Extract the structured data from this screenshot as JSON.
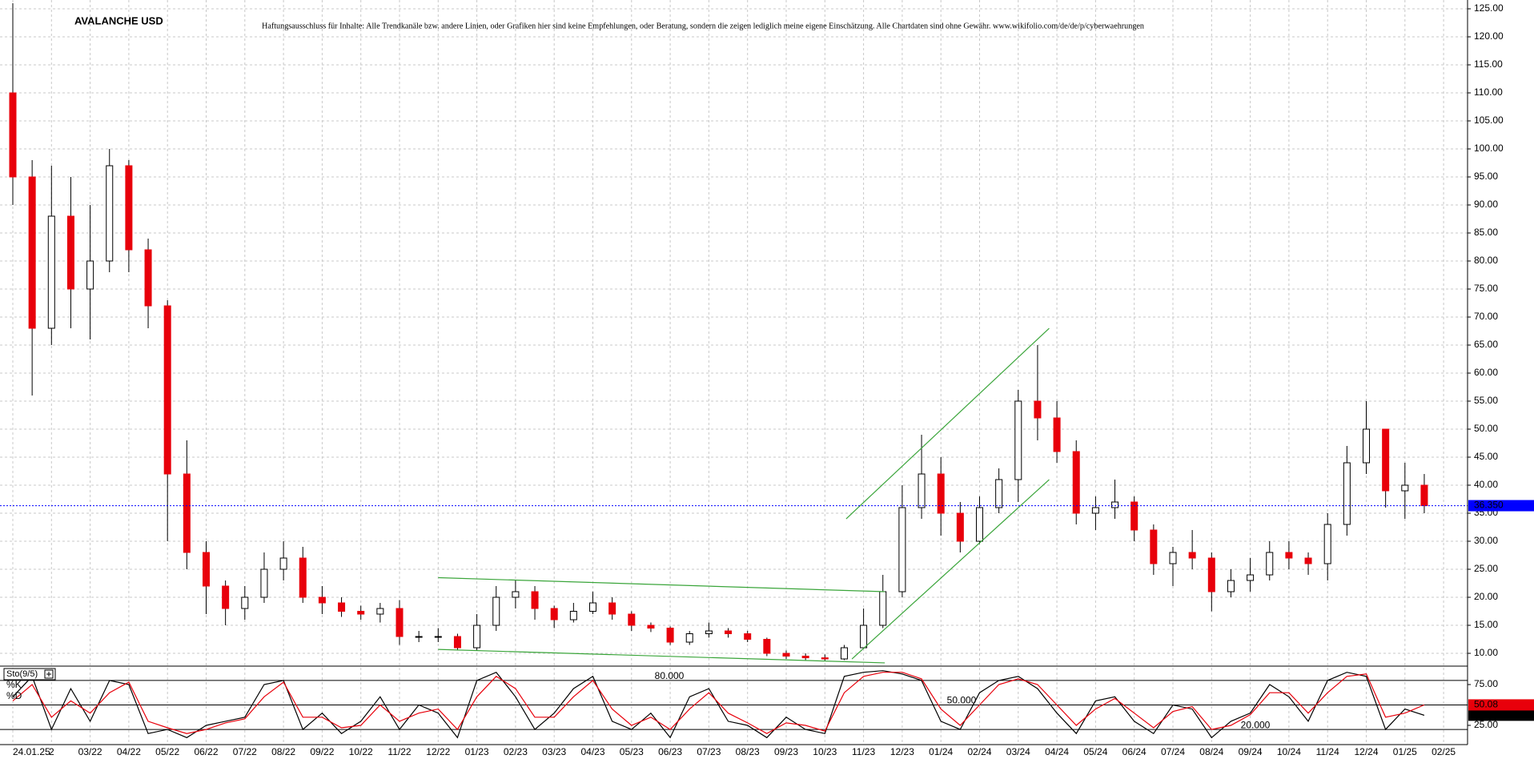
{
  "chart_data": [
    {
      "type": "candlestick",
      "title": "AVALANCHE USD",
      "disclaimer": "Haftungsausschluss für Inhalte: Alle Trendkanäle bzw. andere Linien, oder Grafiken hier sind keine Empfehlungen, oder Beratung, sondern die zeigen lediglich meine eigene Einschätzung. Alle Chartdaten sind ohne Gewähr.  www.wikifolio.com/de/de/p/cyberwaehrungen",
      "categories": [
        "24.01.25",
        null,
        "2",
        null,
        "03/22",
        null,
        "04/22",
        null,
        "05/22",
        null,
        "06/22",
        null,
        "07/22",
        null,
        "08/22",
        null,
        "09/22",
        null,
        "10/22",
        null,
        "11/22",
        null,
        "12/22",
        null,
        "01/23",
        null,
        "02/23",
        null,
        "03/23",
        null,
        "04/23",
        null,
        "05/23",
        null,
        "06/23",
        null,
        "07/23",
        null,
        "08/23",
        null,
        "09/23",
        null,
        "10/23",
        null,
        "11/23",
        null,
        "12/23",
        null,
        "01/24",
        null,
        "02/24",
        null,
        "03/24",
        null,
        "04/24",
        null,
        "05/24",
        null,
        "06/24",
        null,
        "07/24",
        null,
        "08/24",
        null,
        "09/24",
        null,
        "10/24",
        null,
        "11/24",
        null,
        "12/24",
        null,
        "01/25",
        null
      ],
      "axis_end_label": "02/25",
      "ohlc": [
        [
          110,
          126,
          90,
          95
        ],
        [
          95,
          98,
          56,
          68
        ],
        [
          68,
          97,
          65,
          88
        ],
        [
          88,
          95,
          68,
          75
        ],
        [
          75,
          90,
          66,
          80
        ],
        [
          80,
          100,
          78,
          97
        ],
        [
          97,
          98,
          78,
          82
        ],
        [
          82,
          84,
          68,
          72
        ],
        [
          72,
          73,
          30,
          42
        ],
        [
          42,
          48,
          25,
          28
        ],
        [
          28,
          30,
          17,
          22
        ],
        [
          22,
          23,
          15,
          18
        ],
        [
          18,
          22,
          16,
          20
        ],
        [
          20,
          28,
          19,
          25
        ],
        [
          25,
          30,
          23,
          27
        ],
        [
          27,
          29,
          19,
          20
        ],
        [
          20,
          22,
          17,
          19
        ],
        [
          19,
          20,
          16.5,
          17.5
        ],
        [
          17.5,
          18.5,
          16,
          17
        ],
        [
          17,
          19,
          15.5,
          18
        ],
        [
          18,
          19.5,
          11.5,
          13
        ],
        [
          13,
          14,
          12,
          13
        ],
        [
          13,
          14.5,
          12,
          13
        ],
        [
          13,
          13.5,
          10.5,
          11
        ],
        [
          11,
          17,
          10.5,
          15
        ],
        [
          15,
          22,
          14,
          20
        ],
        [
          20,
          23,
          18,
          21
        ],
        [
          21,
          22,
          16,
          18
        ],
        [
          18,
          18.5,
          14.5,
          16
        ],
        [
          16,
          19,
          15.5,
          17.5
        ],
        [
          17.5,
          21,
          17,
          19
        ],
        [
          19,
          20,
          16,
          17
        ],
        [
          17,
          17.5,
          14,
          15
        ],
        [
          15,
          15.5,
          13.8,
          14.5
        ],
        [
          14.5,
          14.8,
          11.5,
          12
        ],
        [
          12,
          14,
          11.5,
          13.5
        ],
        [
          13.5,
          15.5,
          12.8,
          14
        ],
        [
          14,
          14.5,
          12.8,
          13.5
        ],
        [
          13.5,
          14,
          12,
          12.5
        ],
        [
          12.5,
          12.8,
          9.5,
          10
        ],
        [
          10,
          10.5,
          9,
          9.5
        ],
        [
          9.5,
          10,
          8.8,
          9.2
        ],
        [
          9.2,
          9.8,
          8.7,
          9
        ],
        [
          9,
          11.5,
          8.8,
          11
        ],
        [
          11,
          18,
          10.8,
          15
        ],
        [
          15,
          24,
          14.5,
          21
        ],
        [
          21,
          40,
          20,
          36
        ],
        [
          36,
          49,
          34,
          42
        ],
        [
          42,
          45,
          31,
          35
        ],
        [
          35,
          37,
          28,
          30
        ],
        [
          30,
          38,
          29.5,
          36
        ],
        [
          36,
          43,
          35,
          41
        ],
        [
          41,
          57,
          37,
          55
        ],
        [
          55,
          65,
          48,
          52
        ],
        [
          52,
          55,
          44,
          46
        ],
        [
          46,
          48,
          33,
          35
        ],
        [
          35,
          38,
          32,
          36
        ],
        [
          36,
          41,
          34,
          37
        ],
        [
          37,
          38,
          30,
          32
        ],
        [
          32,
          33,
          24,
          26
        ],
        [
          26,
          29,
          22,
          28
        ],
        [
          28,
          32,
          25,
          27
        ],
        [
          27,
          28,
          17.5,
          21
        ],
        [
          21,
          25,
          20,
          23
        ],
        [
          23,
          27,
          21,
          24
        ],
        [
          24,
          30,
          23,
          28
        ],
        [
          28,
          30,
          25,
          27
        ],
        [
          27,
          28,
          24,
          26
        ],
        [
          26,
          35,
          23,
          33
        ],
        [
          33,
          47,
          31,
          44
        ],
        [
          44,
          55,
          42,
          50
        ],
        [
          50,
          50,
          36,
          39
        ],
        [
          39,
          44,
          34,
          40
        ],
        [
          40,
          42,
          35,
          36.35
        ]
      ],
      "up_color": "#ffffff",
      "down_color": "#e8000b",
      "wick_color": "#000000",
      "current_price": {
        "value": 36.35,
        "label": "36.350"
      },
      "current_price_color": "#0000ff",
      "trendlines": [
        {
          "x": [
            43.1,
            53.6
          ],
          "y": [
            34,
            68
          ]
        },
        {
          "x": [
            43.4,
            53.6
          ],
          "y": [
            9,
            41
          ]
        },
        {
          "x": [
            22.0,
            45.1
          ],
          "y": [
            23.5,
            21
          ]
        },
        {
          "x": [
            22.0,
            45.1
          ],
          "y": [
            10.7,
            8.3
          ]
        }
      ],
      "trendline_color": "#3aa53a",
      "ylim": [
        7.86,
        126.57
      ],
      "yticks": [
        {
          "value": 10,
          "label": "10.00"
        },
        {
          "value": 15,
          "label": "15.00"
        },
        {
          "value": 20,
          "label": "20.00"
        },
        {
          "value": 25,
          "label": "25.00"
        },
        {
          "value": 30,
          "label": "30.00"
        },
        {
          "value": 35,
          "label": "35.00"
        },
        {
          "value": 40,
          "label": "40.00"
        },
        {
          "value": 45,
          "label": "45.00"
        },
        {
          "value": 50,
          "label": "50.00"
        },
        {
          "value": 55,
          "label": "55.00"
        },
        {
          "value": 60,
          "label": "60.00"
        },
        {
          "value": 65,
          "label": "65.00"
        },
        {
          "value": 70,
          "label": "70.00"
        },
        {
          "value": 75,
          "label": "75.00"
        },
        {
          "value": 80,
          "label": "80.00"
        },
        {
          "value": 85,
          "label": "85.00"
        },
        {
          "value": 90,
          "label": "90.00"
        },
        {
          "value": 95,
          "label": "95.00"
        },
        {
          "value": 100,
          "label": "100.00"
        },
        {
          "value": 105,
          "label": "105.00"
        },
        {
          "value": 110,
          "label": "110.00"
        },
        {
          "value": 115,
          "label": "115.00"
        },
        {
          "value": 120,
          "label": "120.00"
        },
        {
          "value": 125,
          "label": "125.00"
        }
      ],
      "grid": true
    },
    {
      "type": "line",
      "title": "Sto(9/5)",
      "series": [
        {
          "name": "%K",
          "color": "#000000",
          "values": [
            60,
            85,
            20,
            70,
            30,
            80,
            75,
            15,
            20,
            10,
            25,
            30,
            35,
            75,
            80,
            20,
            40,
            15,
            30,
            60,
            20,
            50,
            40,
            10,
            80,
            90,
            60,
            20,
            40,
            70,
            85,
            30,
            20,
            40,
            10,
            60,
            70,
            30,
            25,
            10,
            35,
            20,
            15,
            85,
            90,
            92,
            88,
            80,
            30,
            20,
            65,
            80,
            85,
            70,
            40,
            15,
            55,
            60,
            30,
            15,
            50,
            45,
            10,
            30,
            40,
            75,
            60,
            30,
            80,
            90,
            85,
            20,
            45,
            37.393
          ]
        },
        {
          "name": "%D",
          "color": "#e8000b",
          "values": [
            55,
            75,
            35,
            55,
            40,
            65,
            78,
            30,
            22,
            15,
            20,
            28,
            33,
            60,
            78,
            35,
            35,
            22,
            25,
            50,
            30,
            40,
            45,
            20,
            60,
            85,
            70,
            35,
            35,
            60,
            80,
            45,
            25,
            35,
            20,
            45,
            65,
            40,
            28,
            15,
            28,
            25,
            18,
            65,
            85,
            90,
            90,
            82,
            45,
            25,
            50,
            75,
            82,
            75,
            50,
            25,
            45,
            58,
            40,
            22,
            42,
            48,
            20,
            25,
            38,
            65,
            65,
            40,
            65,
            85,
            88,
            35,
            40,
            50.08
          ]
        }
      ],
      "levels": [
        {
          "value": 80,
          "label": "80.000"
        },
        {
          "value": 50,
          "label": "50.000"
        },
        {
          "value": 20,
          "label": "20.000"
        }
      ],
      "ylim": [
        3.4,
        96.6
      ],
      "yticks": [
        {
          "value": 25,
          "label": "25.00"
        },
        {
          "value": 75,
          "label": "75.00"
        }
      ],
      "grid": true
    }
  ]
}
